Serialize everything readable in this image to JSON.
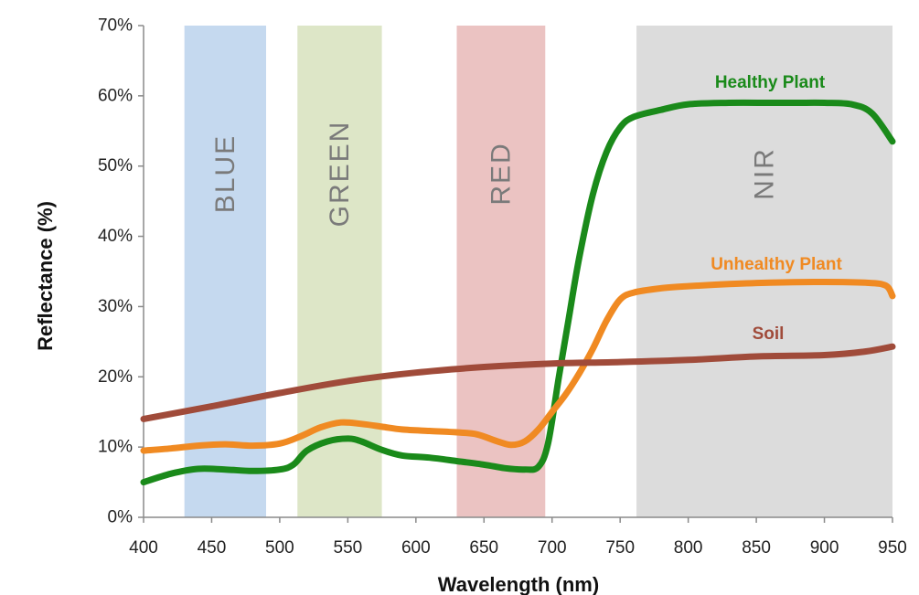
{
  "chart_data": {
    "type": "line",
    "xlabel": "Wavelength (nm)",
    "ylabel": "Reflectance (%)",
    "xlim": [
      400,
      950
    ],
    "ylim": [
      0,
      70
    ],
    "x_ticks": [
      400,
      450,
      500,
      550,
      600,
      650,
      700,
      750,
      800,
      850,
      900,
      950
    ],
    "y_ticks": [
      "0%",
      "10%",
      "20%",
      "30%",
      "40%",
      "50%",
      "60%",
      "70%"
    ],
    "grid": false,
    "bands": [
      {
        "name": "BLUE",
        "from": 430,
        "to": 490,
        "color": "#c5d9ef"
      },
      {
        "name": "GREEN",
        "from": 513,
        "to": 575,
        "color": "#dde6c7"
      },
      {
        "name": "RED",
        "from": 630,
        "to": 695,
        "color": "#ebc3c2"
      },
      {
        "name": "NIR",
        "from": 762,
        "to": 950,
        "color": "#dcdcdc"
      }
    ],
    "series": [
      {
        "name": "Healthy Plant",
        "color": "#1a8a1a",
        "x": [
          400,
          420,
          440,
          460,
          480,
          500,
          510,
          520,
          535,
          550,
          560,
          575,
          590,
          610,
          630,
          650,
          665,
          680,
          690,
          697,
          705,
          712,
          720,
          730,
          740,
          750,
          760,
          780,
          800,
          830,
          860,
          880,
          900,
          920,
          935,
          950
        ],
        "y": [
          5,
          6.2,
          6.9,
          6.8,
          6.6,
          6.8,
          7.5,
          9.5,
          10.8,
          11.2,
          10.8,
          9.6,
          8.8,
          8.5,
          8.0,
          7.5,
          7.0,
          6.8,
          7.2,
          10.5,
          20,
          28,
          37,
          46,
          52,
          55.5,
          57,
          58,
          58.8,
          59,
          59,
          59,
          59,
          58.8,
          57.5,
          53.5
        ]
      },
      {
        "name": "Unhealthy Plant",
        "color": "#f08a22",
        "x": [
          400,
          420,
          440,
          460,
          480,
          500,
          515,
          530,
          545,
          560,
          575,
          590,
          610,
          630,
          645,
          660,
          670,
          680,
          690,
          700,
          710,
          720,
          730,
          740,
          750,
          760,
          780,
          800,
          830,
          860,
          900,
          930,
          945,
          950
        ],
        "y": [
          9.5,
          9.8,
          10.2,
          10.4,
          10.2,
          10.5,
          11.5,
          12.8,
          13.5,
          13.3,
          12.9,
          12.5,
          12.3,
          12.1,
          11.8,
          10.8,
          10.3,
          10.8,
          12.5,
          15,
          17.5,
          20.5,
          24,
          28,
          31,
          32,
          32.6,
          32.9,
          33.2,
          33.4,
          33.5,
          33.4,
          33.0,
          31.5
        ]
      },
      {
        "name": "Soil",
        "color": "#a04b3a",
        "x": [
          400,
          450,
          500,
          550,
          600,
          650,
          700,
          750,
          800,
          850,
          900,
          930,
          950
        ],
        "y": [
          14,
          15.8,
          17.7,
          19.4,
          20.6,
          21.4,
          21.9,
          22.1,
          22.4,
          22.9,
          23.1,
          23.6,
          24.3
        ]
      }
    ]
  }
}
